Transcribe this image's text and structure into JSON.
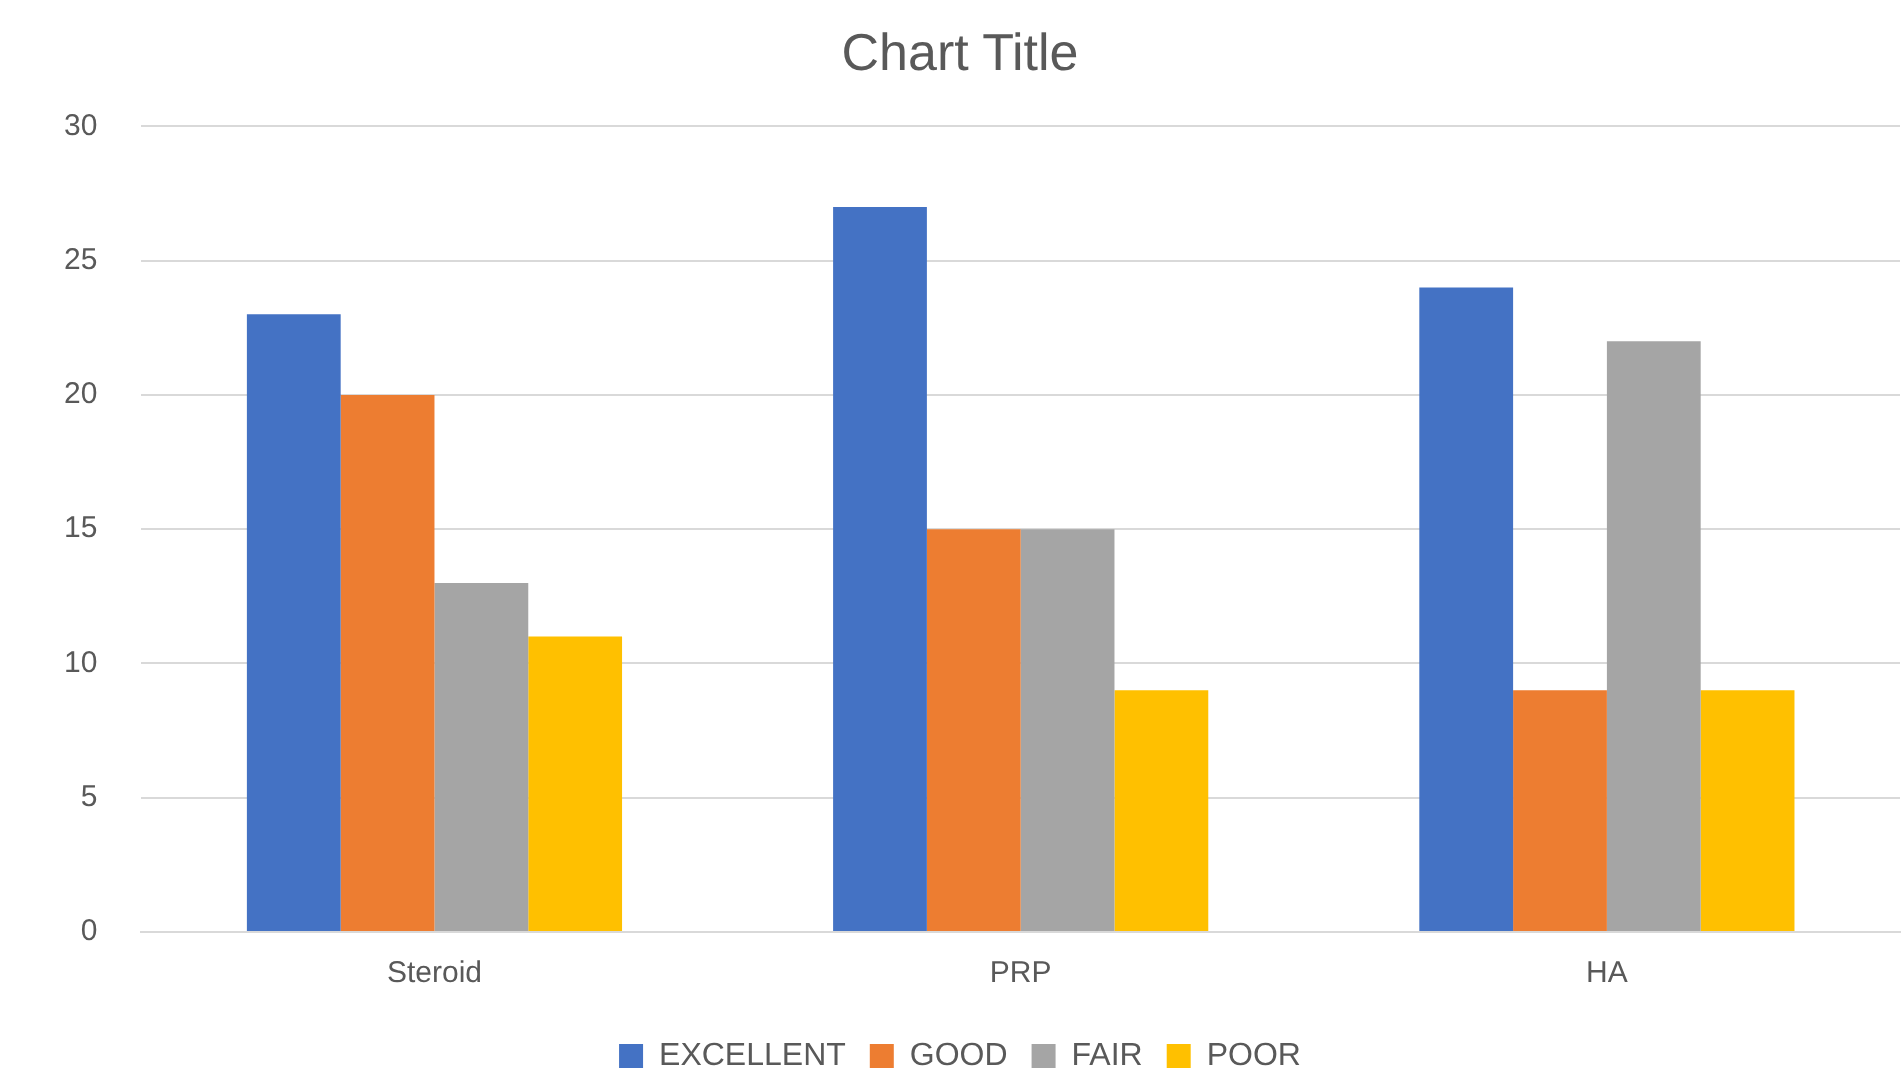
{
  "chart_data": {
    "type": "bar",
    "title": "Chart Title",
    "categories": [
      "Steroid",
      "PRP",
      "HA"
    ],
    "series": [
      {
        "name": "EXCELLENT",
        "color": "#4472c4",
        "values": [
          23,
          27,
          24
        ]
      },
      {
        "name": "GOOD",
        "color": "#ed7d31",
        "values": [
          20,
          15,
          9
        ]
      },
      {
        "name": "FAIR",
        "color": "#a5a5a5",
        "values": [
          13,
          15,
          22
        ]
      },
      {
        "name": "POOR",
        "color": "#ffc000",
        "values": [
          11,
          9,
          9
        ]
      }
    ],
    "ylim": [
      0,
      30
    ],
    "yticks": [
      0,
      5,
      10,
      15,
      20,
      25,
      30
    ],
    "grid": "y",
    "legend": "bottom"
  }
}
